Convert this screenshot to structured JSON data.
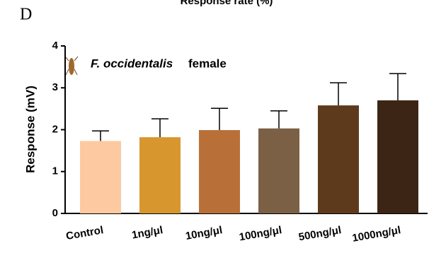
{
  "chart_data": {
    "type": "bar",
    "panel_label": "D",
    "title": "Response rate (%)",
    "y_label": "Response (mV)",
    "annotation": {
      "species": "F. occidentalis",
      "sex": "female"
    },
    "categories": [
      "Control",
      "1ng/μl",
      "10ng/μl",
      "100ng/μl",
      "500ng/μl",
      "1000ng/μl"
    ],
    "values": [
      1.73,
      1.82,
      1.99,
      2.03,
      2.58,
      2.7
    ],
    "errors": [
      0.24,
      0.44,
      0.52,
      0.42,
      0.54,
      0.64
    ],
    "colors": [
      "#fcc9a0",
      "#d8962f",
      "#b87038",
      "#7b6045",
      "#5e3a1c",
      "#3c2514"
    ],
    "ylim": [
      0,
      4
    ],
    "yticks": [
      0,
      1,
      2,
      3,
      4
    ]
  }
}
